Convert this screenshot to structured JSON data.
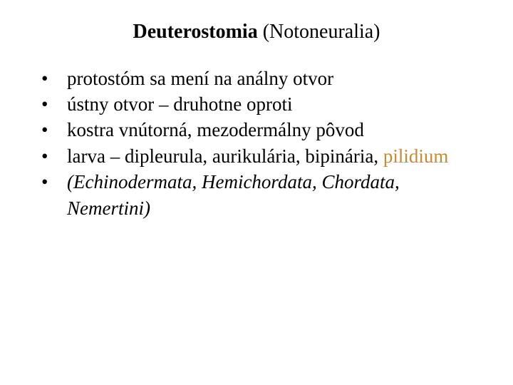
{
  "background_color": "#ffffff",
  "text_color": "#000000",
  "accent_color": "#c88a2e",
  "font_family": "Times New Roman, serif",
  "title": {
    "bold_part": "Deuterostomia",
    "rest": " (Notoneuralia)",
    "fontsize": 28
  },
  "bullets": {
    "fontsize": 27,
    "items": [
      {
        "text": "protostóm sa mení na análny otvor"
      },
      {
        "text": "ústny otvor – druhotne oproti"
      },
      {
        "text": "kostra vnútorná, mezodermálny pôvod"
      },
      {
        "text_prefix": "larva – dipleurula, aurikulária, bipinária, ",
        "highlight": "pilidium"
      },
      {
        "italic_open": "(",
        "italic_text": "Echinodermata, Hemichordata, Chordata, Nemertini",
        "italic_close": ")"
      }
    ]
  }
}
